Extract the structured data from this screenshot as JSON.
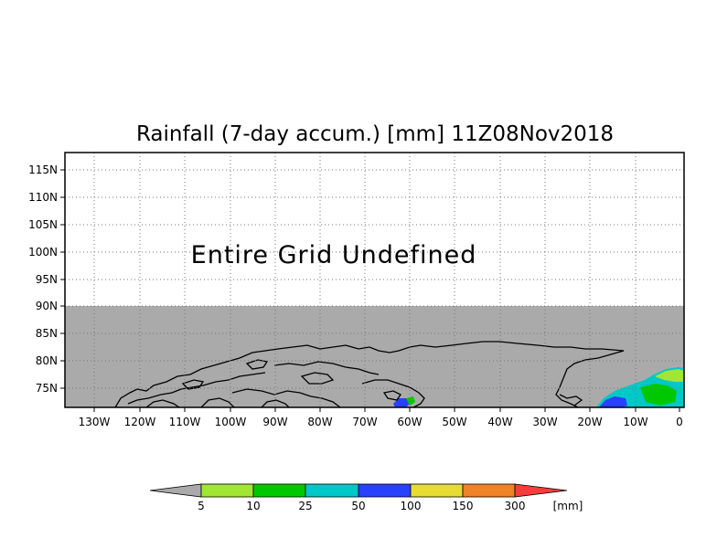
{
  "map": {
    "title": "Rainfall (7-day accum.) [mm] 11Z08Nov2018",
    "message": "Entire Grid Undefined",
    "lat_labels": [
      "115N",
      "110N",
      "105N",
      "100N",
      "95N",
      "90N",
      "85N",
      "80N",
      "75N"
    ],
    "lon_labels": [
      "130W",
      "120W",
      "110W",
      "100W",
      "90W",
      "80W",
      "70W",
      "60W",
      "50W",
      "40W",
      "30W",
      "20W",
      "10W",
      "0"
    ],
    "undefined_color": "#aaaaaa",
    "land_outline_color": "#000000"
  },
  "colorbar": {
    "thresholds": [
      "5",
      "10",
      "25",
      "50",
      "100",
      "150",
      "300"
    ],
    "unit": "[mm]",
    "under_color": "#aaaaaa",
    "colors": [
      "#a0e632",
      "#00c800",
      "#00c8c8",
      "#2840ff",
      "#e6dc32",
      "#f08228",
      "#fa3c3c"
    ]
  }
}
